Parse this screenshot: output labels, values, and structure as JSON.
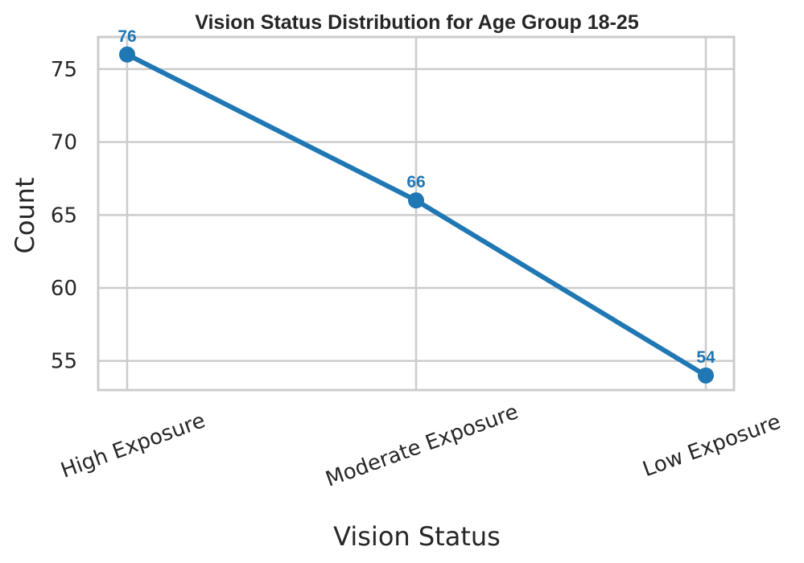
{
  "chart_data": {
    "type": "line",
    "title": "Vision Status Distribution for Age Group 18-25",
    "xlabel": "Vision Status",
    "ylabel": "Count",
    "categories": [
      "High Exposure",
      "Moderate Exposure",
      "Low Exposure"
    ],
    "series": [
      {
        "values": [
          76,
          66,
          54
        ]
      }
    ],
    "ylim": [
      53,
      77.2
    ],
    "yticks": [
      55,
      60,
      65,
      70,
      75
    ],
    "grid": true,
    "legend": "none",
    "colors": {
      "line": "#1f77b4",
      "grid": "#cccccc",
      "text": "#262626"
    }
  }
}
